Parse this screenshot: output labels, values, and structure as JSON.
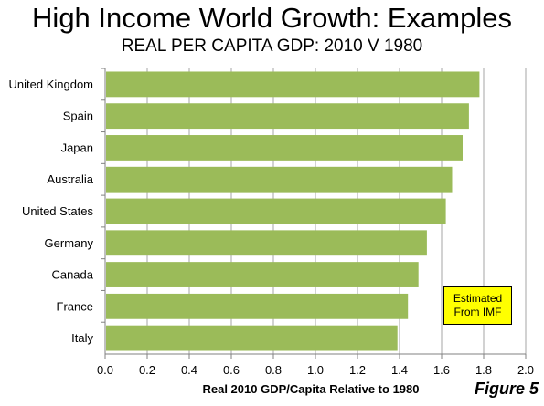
{
  "title": "High Income World Growth: Examples",
  "subtitle": "REAL PER CAPITA GDP: 2010 V 1980",
  "annotation": {
    "line1": "Estimated",
    "line2": "From IMF"
  },
  "figure_label": "Figure 5",
  "chart_data": {
    "type": "bar",
    "orientation": "horizontal",
    "categories": [
      "United Kingdom",
      "Spain",
      "Japan",
      "Australia",
      "United States",
      "Germany",
      "Canada",
      "France",
      "Italy"
    ],
    "values": [
      1.78,
      1.73,
      1.7,
      1.65,
      1.62,
      1.53,
      1.49,
      1.44,
      1.39
    ],
    "xlabel": "Real 2010 GDP/Capita Relative to 1980",
    "xlim": [
      0,
      2.0
    ],
    "xticks": [
      "0.0",
      "0.2",
      "0.4",
      "0.6",
      "0.8",
      "1.0",
      "1.2",
      "1.4",
      "1.6",
      "1.8",
      "2.0"
    ],
    "grid": "vertical",
    "bar_color": "#9bbb59",
    "grid_color": "#a6a6a6"
  }
}
